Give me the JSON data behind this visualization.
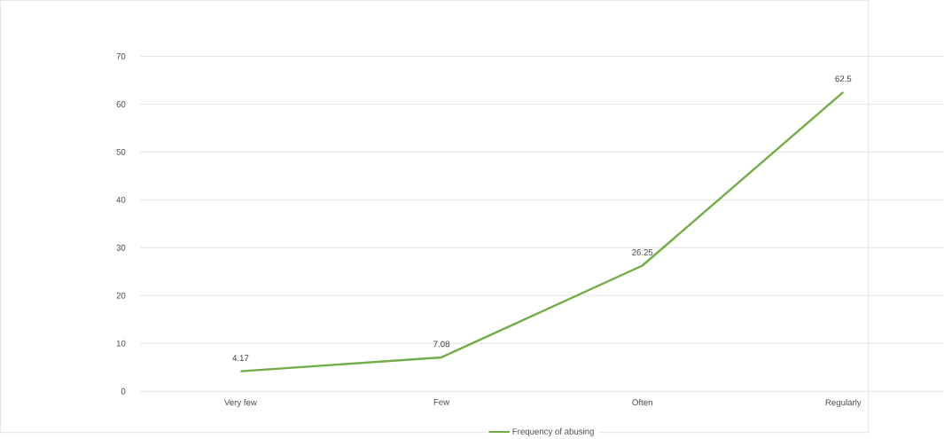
{
  "chart_data": {
    "type": "line",
    "categories": [
      "Very few",
      "Few",
      "Often",
      "Regularly"
    ],
    "series": [
      {
        "name": "Frequency of abusing",
        "color": "#70ad47",
        "values": [
          4.17,
          7.08,
          26.25,
          62.5
        ]
      }
    ],
    "ylim": [
      0,
      70
    ],
    "yticks": [
      0,
      10,
      20,
      30,
      40,
      50,
      60,
      70
    ],
    "grid": "y",
    "legend": "bottom",
    "data_labels": true,
    "marker": "none",
    "line_style": "solid"
  }
}
